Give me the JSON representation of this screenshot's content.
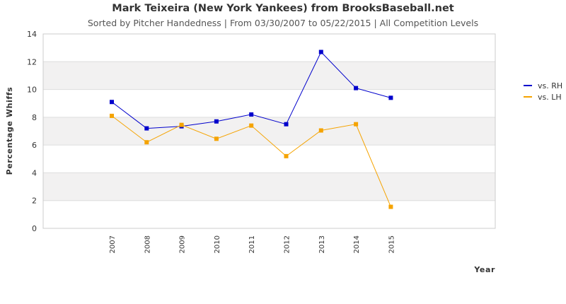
{
  "chart_data": {
    "type": "line",
    "title": "Mark Teixeira (New York Yankees) from BrooksBaseball.net",
    "subtitle": "Sorted by Pitcher Handedness | From 03/30/2007 to 05/22/2015 | All Competition Levels",
    "xlabel": "Year",
    "ylabel": "Percentage Whiffs",
    "ylim": [
      0,
      14
    ],
    "yticks": [
      "0",
      "2",
      "4",
      "6",
      "8",
      "10",
      "12",
      "14"
    ],
    "categories": [
      "2007",
      "2008",
      "2009",
      "2010",
      "2011",
      "2012",
      "2013",
      "2014",
      "2015"
    ],
    "grid": true,
    "legend_position": "right",
    "series": [
      {
        "name": "vs. RH",
        "color": "#0000cc",
        "values": [
          9.1,
          7.2,
          7.35,
          7.7,
          8.2,
          7.5,
          12.7,
          10.1,
          9.4
        ]
      },
      {
        "name": "vs. LH",
        "color": "#f5a300",
        "values": [
          8.1,
          6.2,
          7.45,
          6.45,
          7.4,
          5.2,
          7.05,
          7.5,
          1.55
        ]
      }
    ]
  }
}
